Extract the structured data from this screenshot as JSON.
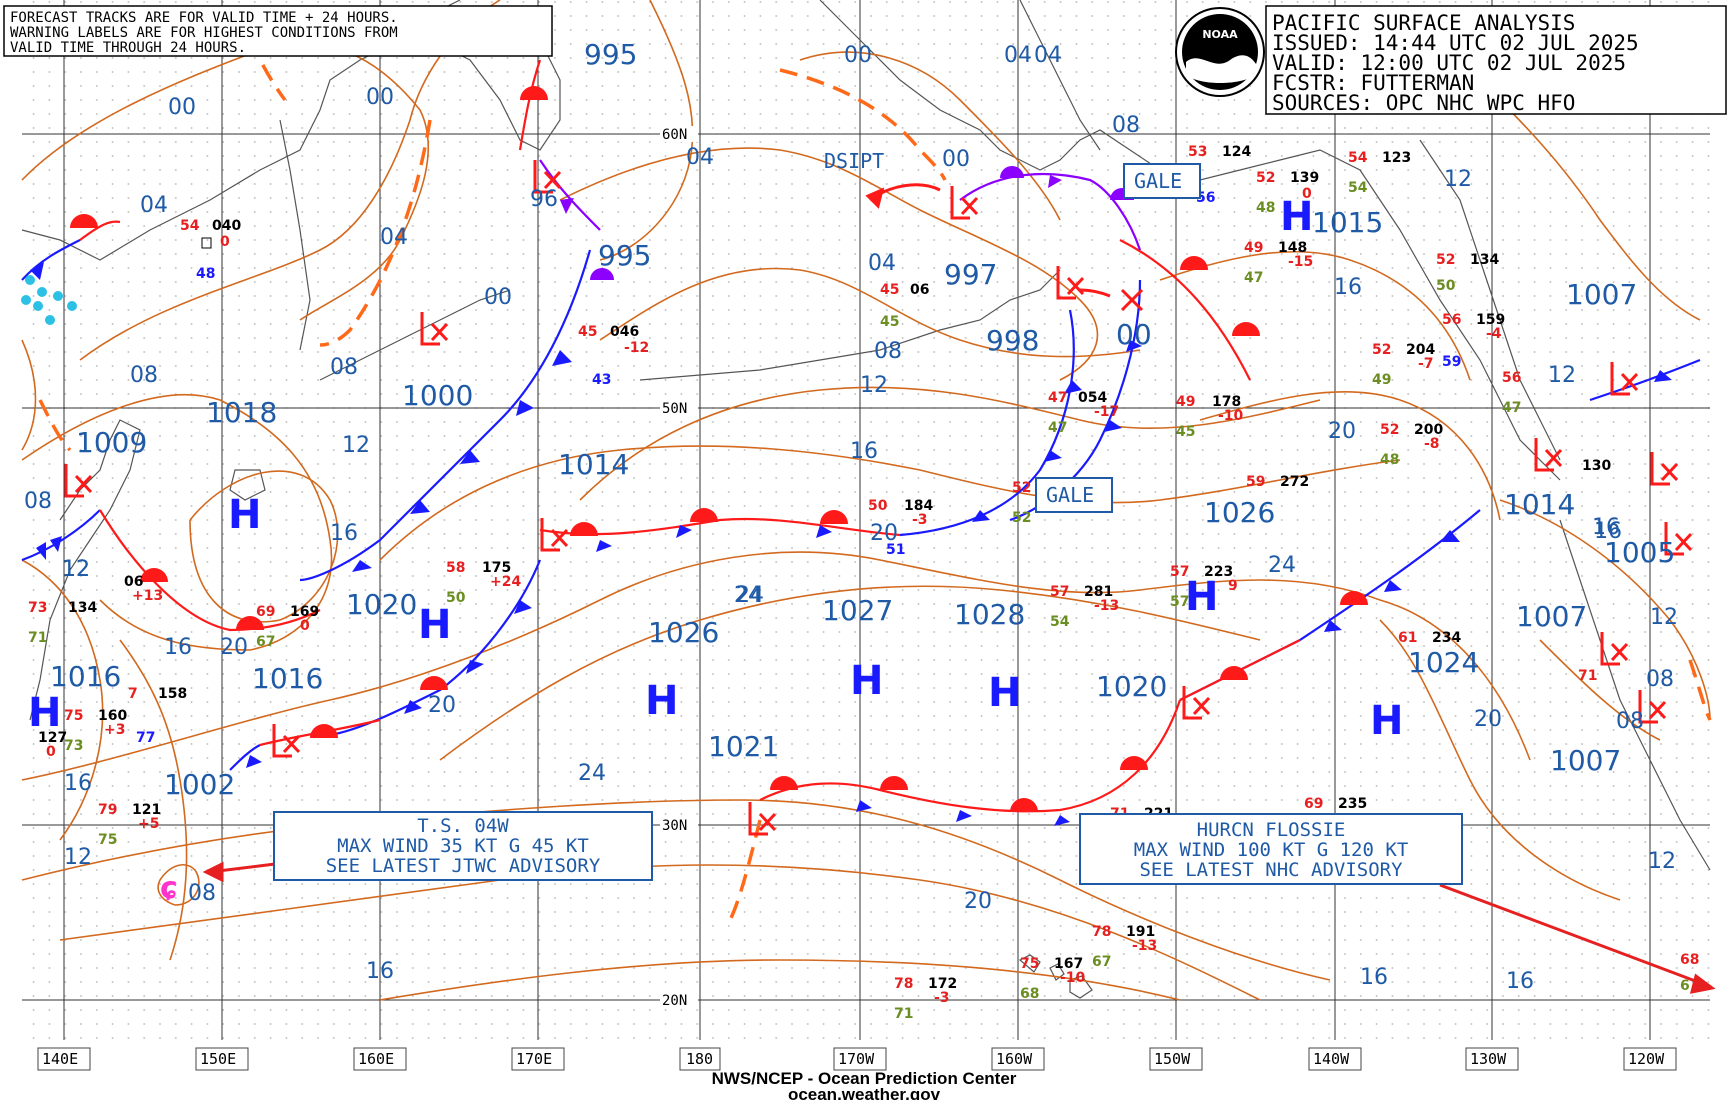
{
  "header": {
    "title": "PACIFIC SURFACE ANALYSIS",
    "issued": "ISSUED: 14:44 UTC 02 JUL 2025",
    "valid": "VALID:  12:00 UTC 02 JUL 2025",
    "forecaster": "FCSTR:  FUTTERMAN",
    "sources": "SOURCES: OPC NHC WPC HFO"
  },
  "notice": {
    "line1": "FORECAST TRACKS ARE FOR VALID TIME + 24 HOURS.",
    "line2": "WARNING LABELS ARE FOR HIGHEST CONDITIONS FROM",
    "line3": "VALID TIME THROUGH 24 HOURS."
  },
  "logo": {
    "text": "NOAA"
  },
  "footer": {
    "agency": "NWS/NCEP - Ocean Prediction Center",
    "site": "ocean.weather.gov"
  },
  "latitudes": [
    "60N",
    "50N",
    "30N",
    "20N"
  ],
  "longitudes": [
    "140E",
    "150E",
    "160E",
    "170E",
    "180",
    "170W",
    "160W",
    "150W",
    "140W",
    "130W",
    "120W"
  ],
  "storms": {
    "ts04w": {
      "line1": "T.S. 04W",
      "line2": "MAX WIND 35 KT G 45 KT",
      "line3": "SEE LATEST JTWC ADVISORY"
    },
    "flossie": {
      "line1": "HURCN FLOSSIE",
      "line2": "MAX WIND 100 KT G 120 KT",
      "line3": "SEE LATEST NHC ADVISORY"
    }
  },
  "warnings": {
    "gale_north": "GALE",
    "gale_south": "GALE",
    "dsipt": "DSIPT"
  },
  "pressure_centers": [
    {
      "type": "L",
      "value": "995"
    },
    {
      "type": "L",
      "value": "995"
    },
    {
      "type": "L",
      "value": "1000"
    },
    {
      "type": "L",
      "value": "997"
    },
    {
      "type": "L",
      "value": "998"
    },
    {
      "type": "L",
      "value": "1009"
    },
    {
      "type": "H",
      "value": "1018"
    },
    {
      "type": "H",
      "value": "1020"
    },
    {
      "type": "H",
      "value": "1016"
    },
    {
      "type": "H",
      "value": "1016"
    },
    {
      "type": "L",
      "value": "1002"
    },
    {
      "type": "L",
      "value": "1014"
    },
    {
      "type": "H",
      "value": "1026"
    },
    {
      "type": "H",
      "value": "1027"
    },
    {
      "type": "H",
      "value": "1028"
    },
    {
      "type": "H",
      "value": "1026"
    },
    {
      "type": "L",
      "value": "1021"
    },
    {
      "type": "L",
      "value": "1020"
    },
    {
      "type": "H",
      "value": "1024"
    },
    {
      "type": "L",
      "value": "1014"
    },
    {
      "type": "L",
      "value": "1015"
    },
    {
      "type": "L",
      "value": "1007"
    },
    {
      "type": "L",
      "value": "1005"
    },
    {
      "type": "L",
      "value": "1007"
    },
    {
      "type": "L",
      "value": "1007"
    },
    {
      "type": "L",
      "value": "00"
    }
  ],
  "isobar_labels": [
    "00",
    "04",
    "08",
    "12",
    "16",
    "20",
    "24",
    "00",
    "04",
    "08",
    "12",
    "16",
    "20",
    "24",
    "04",
    "00",
    "04",
    "08",
    "12",
    "16",
    "00",
    "04",
    "08",
    "12",
    "16",
    "20",
    "24",
    "16",
    "20",
    "24",
    "16",
    "20",
    "12",
    "16",
    "20",
    "12",
    "16",
    "08",
    "12",
    "16",
    "20",
    "12",
    "08",
    "16",
    "12",
    "08",
    "00",
    "04",
    "08",
    "96"
  ],
  "stations": [
    {
      "t": "54",
      "p": "040",
      "d": "0",
      "dp": "48"
    },
    {
      "t": "45",
      "p": "046",
      "d": "-12",
      "dp": "43"
    },
    {
      "t": "45",
      "p": "06",
      "d": "",
      "dp": "45"
    },
    {
      "t": "53",
      "p": "124",
      "d": "",
      "dp": "56"
    },
    {
      "t": "52",
      "p": "139",
      "d": "0",
      "dp": "48"
    },
    {
      "t": "49",
      "p": "148",
      "d": "-15",
      "dp": "47"
    },
    {
      "t": "54",
      "p": "123",
      "d": "",
      "dp": "54"
    },
    {
      "t": "52",
      "p": "134",
      "d": "",
      "dp": "50"
    },
    {
      "t": "56",
      "p": "159",
      "d": "-4",
      "dp": "59"
    },
    {
      "t": "52",
      "p": "204",
      "d": "-7",
      "dp": "49"
    },
    {
      "t": "56",
      "p": "",
      "d": "",
      "dp": "47"
    },
    {
      "t": "47",
      "p": "054",
      "d": "-17",
      "dp": "47"
    },
    {
      "t": "49",
      "p": "178",
      "d": "-10",
      "dp": "45"
    },
    {
      "t": "52",
      "p": "200",
      "d": "-8",
      "dp": "48"
    },
    {
      "t": "59",
      "p": "272",
      "d": "",
      "dp": ""
    },
    {
      "t": "52",
      "p": "",
      "d": "",
      "dp": "52"
    },
    {
      "t": "50",
      "p": "184",
      "d": "-3",
      "dp": "51"
    },
    {
      "t": "58",
      "p": "175",
      "d": "+24",
      "dp": "50"
    },
    {
      "t": "69",
      "p": "169",
      "d": "0",
      "dp": "67"
    },
    {
      "t": "57",
      "p": "281",
      "d": "-13",
      "dp": "54"
    },
    {
      "t": "57",
      "p": "223",
      "d": "9",
      "dp": "57"
    },
    {
      "t": "61",
      "p": "234",
      "d": "",
      "dp": ""
    },
    {
      "t": "73",
      "p": "134",
      "d": "",
      "dp": "71"
    },
    {
      "t": "75",
      "p": "160",
      "d": "+3",
      "dp": "73"
    },
    {
      "t": "7",
      "p": "158",
      "d": "",
      "dp": "77"
    },
    {
      "t": "79",
      "p": "121",
      "d": "+5",
      "dp": "75"
    },
    {
      "t": "69",
      "p": "235",
      "d": "",
      "dp": ""
    },
    {
      "t": "71",
      "p": "221",
      "d": "",
      "dp": ""
    },
    {
      "t": "78",
      "p": "191",
      "d": "-13",
      "dp": "67"
    },
    {
      "t": "75",
      "p": "167",
      "d": "-10",
      "dp": "68"
    },
    {
      "t": "78",
      "p": "172",
      "d": "-3",
      "dp": "71"
    },
    {
      "t": "71",
      "p": "",
      "d": "",
      "dp": ""
    },
    {
      "t": "68",
      "p": "",
      "d": "",
      "dp": "6"
    },
    {
      "t": "",
      "p": "127",
      "d": "0",
      "dp": ""
    },
    {
      "t": "",
      "p": "06",
      "d": "+13",
      "dp": ""
    },
    {
      "t": "",
      "p": "130",
      "d": "",
      "dp": ""
    }
  ],
  "colors": {
    "isobar": "#d2691e",
    "cold_front": "#1a1aff",
    "warm_front": "#ff1a1a",
    "occluded": "#8b00ff",
    "trough": "#ff6a1a",
    "grid": "#222222",
    "coast": "#555555",
    "label_text": "#1f5aa6"
  }
}
